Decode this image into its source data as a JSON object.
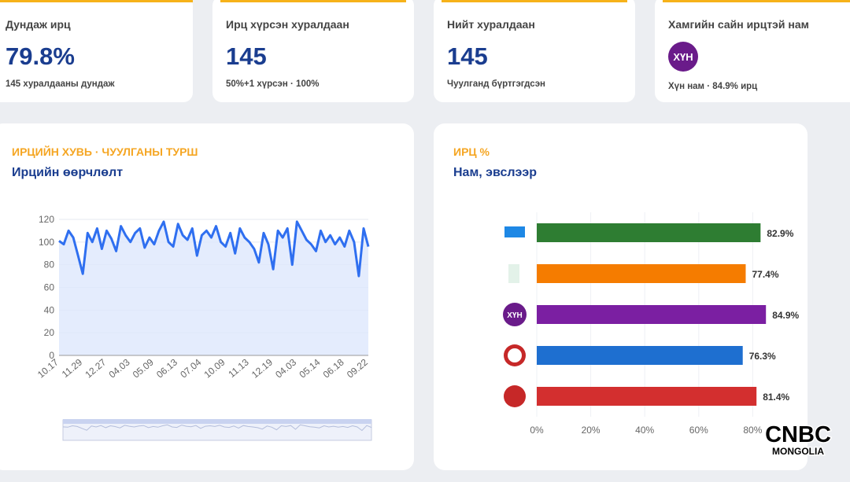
{
  "cards": [
    {
      "label": "Дундаж ирц",
      "value": "79.8%",
      "sub": "145 хуралдааны дундаж"
    },
    {
      "label": "Ирц хүрсэн хуралдаан",
      "value": "145",
      "sub": "50%+1 хүрсэн · 100%"
    },
    {
      "label": "Нийт хуралдаан",
      "value": "145",
      "sub": "Чуулганд бүртгэгдсэн"
    },
    {
      "label": "Хамгийн сайн ирцтэй нам",
      "badge": "ХҮН",
      "sub": "Хүн нам · 84.9% ирц"
    }
  ],
  "chart_data": [
    {
      "type": "line",
      "kicker": "ИРЦИЙН ХУВЬ · ЧУУЛГАНЫ ТУРШ",
      "title": "Ирцийн өөрчлөлт",
      "categories": [
        "10.17",
        null,
        null,
        null,
        null,
        "11.29",
        null,
        null,
        null,
        null,
        "12.27",
        null,
        null,
        null,
        null,
        "04.03",
        null,
        null,
        null,
        null,
        "05.09",
        null,
        null,
        null,
        null,
        "06.13",
        null,
        null,
        null,
        null,
        "07.04",
        null,
        null,
        null,
        null,
        "10.09",
        null,
        null,
        null,
        null,
        "11.13",
        null,
        null,
        null,
        null,
        "12.19",
        null,
        null,
        null,
        null,
        "04.03",
        null,
        null,
        null,
        null,
        "05.14",
        null,
        null,
        null,
        null,
        "06.18",
        null,
        null,
        null,
        null,
        "09.22"
      ],
      "values": [
        101,
        98,
        110,
        104,
        88,
        72,
        108,
        100,
        112,
        94,
        110,
        103,
        92,
        114,
        106,
        100,
        108,
        112,
        95,
        104,
        98,
        110,
        118,
        100,
        96,
        116,
        106,
        102,
        112,
        88,
        106,
        110,
        104,
        114,
        100,
        96,
        108,
        90,
        112,
        104,
        100,
        94,
        82,
        108,
        98,
        76,
        110,
        104,
        112,
        80,
        118,
        110,
        102,
        98,
        92,
        110,
        100,
        106,
        98,
        104,
        96,
        110,
        100,
        70,
        112,
        96
      ],
      "color": "#2f6ff0",
      "ylim": [
        0,
        120
      ],
      "yticks": [
        0,
        20,
        40,
        60,
        80,
        100,
        120
      ],
      "grid": true
    },
    {
      "type": "hbar",
      "kicker": "ИРЦ %",
      "title": "Нам, эвслээр",
      "categories": [
        null,
        null,
        "ХҮН",
        null,
        null
      ],
      "values": [
        82.9,
        77.4,
        84.9,
        76.3,
        81.4
      ],
      "value_labels": [
        "82.9%",
        "77.4%",
        "84.9%",
        "76.3%",
        "81.4%"
      ],
      "colors": [
        "#2e7d32",
        "#f57c00",
        "#7b1fa2",
        "#1e6fd0",
        "#d32f2f"
      ],
      "xlim": [
        0,
        100
      ],
      "xticks": [
        {
          "value": 0,
          "label": "0%"
        },
        {
          "value": 20,
          "label": "20%"
        },
        {
          "value": 40,
          "label": "40%"
        },
        {
          "value": 60,
          "label": "60%"
        },
        {
          "value": 80,
          "label": "80%"
        }
      ],
      "grid": true
    }
  ],
  "watermark": {
    "line1": "CNBC",
    "line2": "MONGOLIA"
  }
}
